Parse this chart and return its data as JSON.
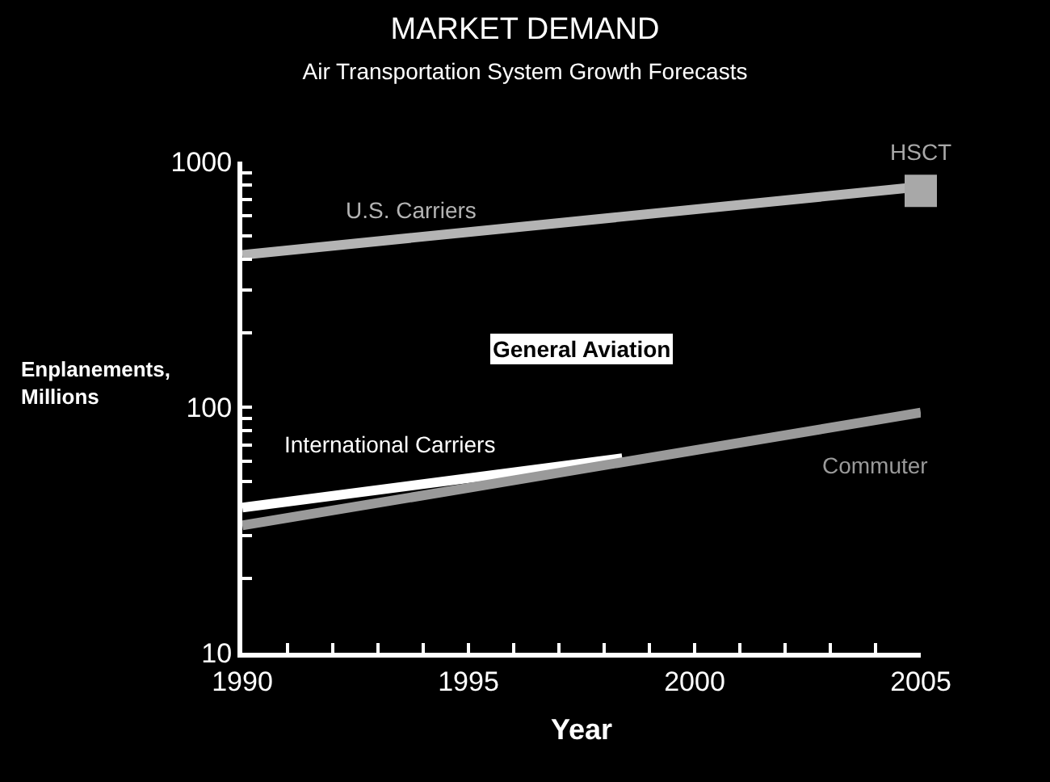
{
  "chart_data": {
    "type": "line",
    "title": "MARKET DEMAND",
    "subtitle": "Air Transportation System Growth Forecasts",
    "xlabel": "Year",
    "ylabel": "Enplanements,\nMillions",
    "series": [
      {
        "name": "U.S. Carriers",
        "color": "#b4b4b4",
        "x": [
          1990,
          2004.7
        ],
        "values": [
          417,
          780
        ]
      },
      {
        "name": "International Carriers",
        "color": "#ffffff",
        "x": [
          1990,
          1998.4
        ],
        "values": [
          39,
          62
        ]
      },
      {
        "name": "Commuter",
        "color": "#9a9a9a",
        "x": [
          1990,
          2005
        ],
        "values": [
          33,
          95
        ]
      },
      {
        "name": "HSCT",
        "type": "scatter",
        "marker": "square",
        "color": "#a8a8a8",
        "x": [
          2005
        ],
        "values": [
          760
        ]
      }
    ],
    "annotations": [
      "General Aviation"
    ],
    "log": "y",
    "grid": false,
    "legend": false,
    "line_style": "solid",
    "xlim": [
      1990,
      2005
    ],
    "xticks": [
      1990,
      {
        "value": 1991,
        "label": null
      },
      {
        "value": 1992,
        "label": null
      },
      {
        "value": 1993,
        "label": null
      },
      {
        "value": 1994,
        "label": null
      },
      1995,
      {
        "value": 1996,
        "label": null
      },
      {
        "value": 1997,
        "label": null
      },
      {
        "value": 1998,
        "label": null
      },
      {
        "value": 1999,
        "label": null
      },
      2000,
      {
        "value": 2001,
        "label": null
      },
      {
        "value": 2002,
        "label": null
      },
      {
        "value": 2003,
        "label": null
      },
      {
        "value": 2004,
        "label": null
      },
      2005
    ],
    "ylim": [
      10,
      1000
    ],
    "yticks": [
      10,
      {
        "value": 20,
        "label": null
      },
      {
        "value": 30,
        "label": null
      },
      {
        "value": 40,
        "label": null
      },
      {
        "value": 50,
        "label": null
      },
      {
        "value": 60,
        "label": null
      },
      {
        "value": 70,
        "label": null
      },
      {
        "value": 80,
        "label": null
      },
      {
        "value": 90,
        "label": null
      },
      100,
      {
        "value": 200,
        "label": null
      },
      {
        "value": 300,
        "label": null
      },
      {
        "value": 400,
        "label": null
      },
      {
        "value": 500,
        "label": null
      },
      {
        "value": 600,
        "label": null
      },
      {
        "value": 700,
        "label": null
      },
      {
        "value": 800,
        "label": null
      },
      {
        "value": 900,
        "label": null
      },
      1000
    ]
  }
}
